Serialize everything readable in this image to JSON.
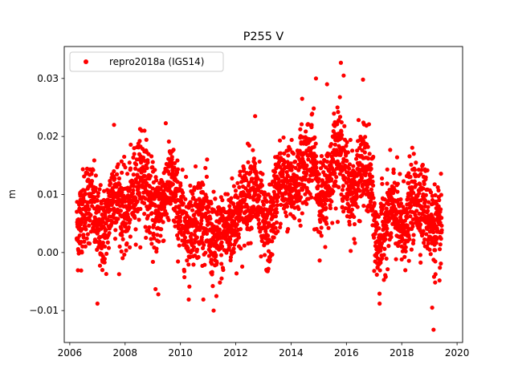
{
  "chart_data": {
    "type": "scatter",
    "title": "P255 V",
    "xlabel": "",
    "ylabel": "m",
    "xlim": [
      2005.8,
      2020.2
    ],
    "ylim": [
      -0.0155,
      0.0355
    ],
    "xticks": [
      2006,
      2008,
      2010,
      2012,
      2014,
      2016,
      2018,
      2020
    ],
    "xtick_labels": [
      "2006",
      "2008",
      "2010",
      "2012",
      "2014",
      "2016",
      "2018",
      "2020"
    ],
    "yticks": [
      -0.01,
      0.0,
      0.01,
      0.02,
      0.03
    ],
    "ytick_labels": [
      "−0.01",
      "0.00",
      "0.01",
      "0.02",
      "0.03"
    ],
    "grid": false,
    "legend_position": "upper-left",
    "series": [
      {
        "name": "repro2018a (IGS14)",
        "color": "#ff0000",
        "marker": "circle",
        "x_start": 2006.25,
        "x_end": 2019.45,
        "trend": [
          [
            2006.25,
            0.004
          ],
          [
            2006.5,
            0.006
          ],
          [
            2006.8,
            0.009
          ],
          [
            2007.0,
            0.006
          ],
          [
            2007.3,
            0.004
          ],
          [
            2007.6,
            0.009
          ],
          [
            2008.0,
            0.008
          ],
          [
            2008.4,
            0.011
          ],
          [
            2008.7,
            0.012
          ],
          [
            2009.0,
            0.009
          ],
          [
            2009.3,
            0.008
          ],
          [
            2009.7,
            0.011
          ],
          [
            2010.0,
            0.008
          ],
          [
            2010.3,
            0.004
          ],
          [
            2010.6,
            0.005
          ],
          [
            2010.9,
            0.007
          ],
          [
            2011.1,
            0.004
          ],
          [
            2011.4,
            0.001
          ],
          [
            2011.7,
            0.003
          ],
          [
            2012.0,
            0.008
          ],
          [
            2012.4,
            0.009
          ],
          [
            2012.7,
            0.01
          ],
          [
            2013.0,
            0.006
          ],
          [
            2013.2,
            0.004
          ],
          [
            2013.5,
            0.01
          ],
          [
            2013.8,
            0.012
          ],
          [
            2014.1,
            0.013
          ],
          [
            2014.5,
            0.014
          ],
          [
            2014.8,
            0.016
          ],
          [
            2015.1,
            0.01
          ],
          [
            2015.4,
            0.012
          ],
          [
            2015.7,
            0.018
          ],
          [
            2016.0,
            0.014
          ],
          [
            2016.3,
            0.01
          ],
          [
            2016.6,
            0.014
          ],
          [
            2016.9,
            0.012
          ],
          [
            2017.1,
            0.002
          ],
          [
            2017.4,
            0.004
          ],
          [
            2017.7,
            0.007
          ],
          [
            2018.0,
            0.005
          ],
          [
            2018.3,
            0.008
          ],
          [
            2018.6,
            0.008
          ],
          [
            2018.9,
            0.008
          ],
          [
            2019.1,
            0.006
          ],
          [
            2019.45,
            0.002
          ]
        ],
        "scatter_std": 0.0042,
        "outliers": [
          [
            2007.6,
            0.022
          ],
          [
            2008.6,
            0.021
          ],
          [
            2008.7,
            0.021
          ],
          [
            2011.2,
            -0.01
          ],
          [
            2011.3,
            -0.0075
          ],
          [
            2012.7,
            0.0235
          ],
          [
            2014.4,
            0.0265
          ],
          [
            2014.9,
            0.03
          ],
          [
            2015.3,
            0.029
          ],
          [
            2015.8,
            0.0327
          ],
          [
            2015.9,
            0.0305
          ],
          [
            2016.6,
            0.0298
          ],
          [
            2017.2,
            -0.0088
          ],
          [
            2019.15,
            -0.0133
          ],
          [
            2019.1,
            -0.0095
          ],
          [
            2007.0,
            -0.0088
          ],
          [
            2009.1,
            -0.0063
          ],
          [
            2010.3,
            -0.0081
          ],
          [
            2009.2,
            -0.0072
          ]
        ]
      }
    ]
  }
}
